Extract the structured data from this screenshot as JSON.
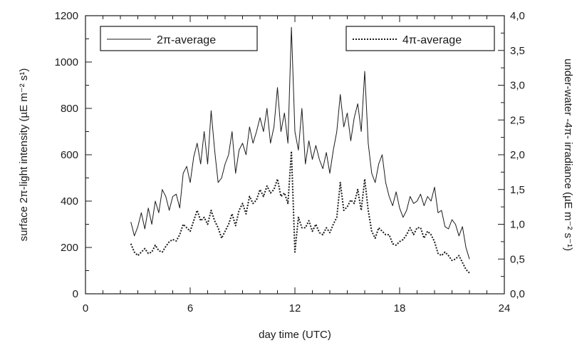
{
  "chart_data": {
    "type": "line",
    "title": "",
    "xlabel": "day time (UTC)",
    "ylabel_left": "surface 2π-light intensity (µE m⁻² s¹)",
    "ylabel_right": "under-water -4π- irradiance (µE m⁻² s⁻¹)",
    "xlim": [
      0,
      24
    ],
    "ylim_left": [
      0,
      1200
    ],
    "ylim_right": [
      0.0,
      4.0
    ],
    "x_ticks": [
      "0",
      "6",
      "12",
      "18",
      "24"
    ],
    "y_left_ticks": [
      "0",
      "200",
      "400",
      "600",
      "800",
      "1000",
      "1200"
    ],
    "y_right_ticks": [
      "0,0",
      "0,5",
      "1,0",
      "1,5",
      "2,0",
      "2,5",
      "3,0",
      "3,5",
      "4,0"
    ],
    "grid": false,
    "legend": [
      {
        "label": "2π-average",
        "style": "solid",
        "position": "top-left"
      },
      {
        "label": "4π-average",
        "style": "dotted",
        "position": "top-right"
      }
    ],
    "series": [
      {
        "name": "2π-average",
        "axis": "left",
        "style": "solid",
        "x": [
          2.6,
          2.8,
          3.0,
          3.2,
          3.4,
          3.6,
          3.8,
          4.0,
          4.2,
          4.4,
          4.6,
          4.8,
          5.0,
          5.2,
          5.4,
          5.6,
          5.8,
          6.0,
          6.2,
          6.4,
          6.6,
          6.8,
          7.0,
          7.2,
          7.4,
          7.6,
          7.8,
          8.0,
          8.2,
          8.4,
          8.6,
          8.8,
          9.0,
          9.2,
          9.4,
          9.6,
          9.8,
          10.0,
          10.2,
          10.4,
          10.6,
          10.8,
          11.0,
          11.2,
          11.4,
          11.6,
          11.8,
          12.0,
          12.2,
          12.4,
          12.6,
          12.8,
          13.0,
          13.2,
          13.4,
          13.6,
          13.8,
          14.0,
          14.2,
          14.4,
          14.6,
          14.8,
          15.0,
          15.2,
          15.4,
          15.6,
          15.8,
          16.0,
          16.2,
          16.4,
          16.6,
          16.8,
          17.0,
          17.2,
          17.4,
          17.6,
          17.8,
          18.0,
          18.2,
          18.4,
          18.6,
          18.8,
          19.0,
          19.2,
          19.4,
          19.6,
          19.8,
          20.0,
          20.2,
          20.4,
          20.6,
          20.8,
          21.0,
          21.2,
          21.4,
          21.6,
          21.8,
          22.0
        ],
        "y": [
          310,
          250,
          290,
          350,
          280,
          370,
          300,
          400,
          350,
          450,
          420,
          360,
          420,
          430,
          370,
          520,
          550,
          480,
          590,
          650,
          560,
          700,
          560,
          790,
          620,
          480,
          500,
          560,
          600,
          700,
          520,
          620,
          650,
          600,
          720,
          650,
          700,
          760,
          700,
          800,
          650,
          720,
          890,
          700,
          780,
          650,
          1150,
          700,
          620,
          800,
          560,
          660,
          580,
          640,
          580,
          540,
          610,
          520,
          620,
          700,
          860,
          720,
          780,
          660,
          760,
          820,
          700,
          960,
          650,
          520,
          480,
          560,
          600,
          480,
          420,
          380,
          440,
          370,
          330,
          360,
          420,
          390,
          400,
          430,
          380,
          420,
          400,
          460,
          350,
          360,
          290,
          280,
          320,
          300,
          250,
          290,
          200,
          150
        ]
      },
      {
        "name": "4π-average",
        "axis": "right",
        "style": "dotted",
        "x": [
          2.6,
          2.8,
          3.0,
          3.2,
          3.4,
          3.6,
          3.8,
          4.0,
          4.2,
          4.4,
          4.6,
          4.8,
          5.0,
          5.2,
          5.4,
          5.6,
          5.8,
          6.0,
          6.2,
          6.4,
          6.6,
          6.8,
          7.0,
          7.2,
          7.4,
          7.6,
          7.8,
          8.0,
          8.2,
          8.4,
          8.6,
          8.8,
          9.0,
          9.2,
          9.4,
          9.6,
          9.8,
          10.0,
          10.2,
          10.4,
          10.6,
          10.8,
          11.0,
          11.2,
          11.4,
          11.6,
          11.8,
          12.0,
          12.2,
          12.4,
          12.6,
          12.8,
          13.0,
          13.2,
          13.4,
          13.6,
          13.8,
          14.0,
          14.2,
          14.4,
          14.6,
          14.8,
          15.0,
          15.2,
          15.4,
          15.6,
          15.8,
          16.0,
          16.2,
          16.4,
          16.6,
          16.8,
          17.0,
          17.2,
          17.4,
          17.6,
          17.8,
          18.0,
          18.2,
          18.4,
          18.6,
          18.8,
          19.0,
          19.2,
          19.4,
          19.6,
          19.8,
          20.0,
          20.2,
          20.4,
          20.6,
          20.8,
          21.0,
          21.2,
          21.4,
          21.6,
          21.8,
          22.0
        ],
        "y": [
          0.72,
          0.6,
          0.55,
          0.6,
          0.65,
          0.58,
          0.6,
          0.7,
          0.62,
          0.6,
          0.68,
          0.75,
          0.78,
          0.76,
          0.85,
          1.0,
          0.95,
          0.9,
          1.05,
          1.2,
          1.05,
          1.1,
          1.0,
          1.2,
          1.05,
          0.95,
          0.8,
          0.9,
          1.0,
          1.15,
          0.98,
          1.2,
          1.3,
          1.15,
          1.4,
          1.3,
          1.35,
          1.5,
          1.4,
          1.55,
          1.45,
          1.5,
          1.65,
          1.4,
          1.45,
          1.3,
          2.05,
          0.6,
          1.1,
          0.95,
          0.95,
          1.05,
          0.9,
          1.0,
          0.88,
          0.85,
          0.95,
          0.88,
          1.0,
          1.1,
          1.6,
          1.2,
          1.25,
          1.35,
          1.3,
          1.5,
          1.2,
          1.65,
          1.2,
          0.9,
          0.8,
          0.95,
          0.9,
          0.85,
          0.85,
          0.72,
          0.7,
          0.75,
          0.78,
          0.85,
          0.95,
          0.85,
          0.95,
          0.95,
          0.8,
          0.9,
          0.85,
          0.75,
          0.58,
          0.55,
          0.6,
          0.55,
          0.48,
          0.5,
          0.55,
          0.45,
          0.35,
          0.3
        ]
      }
    ]
  }
}
